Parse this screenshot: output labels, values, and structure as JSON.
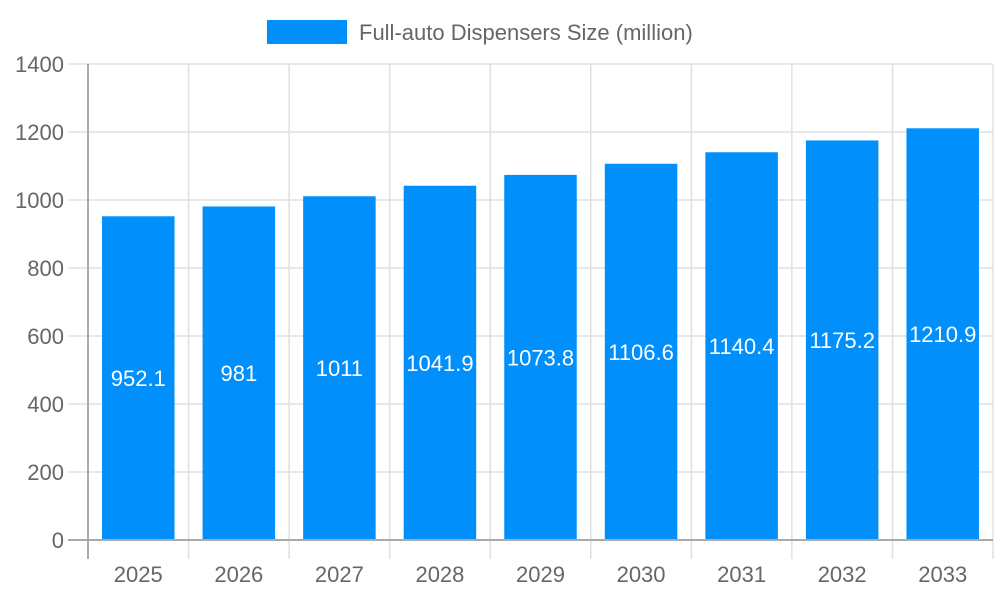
{
  "chart_data": {
    "type": "bar",
    "title": "",
    "xlabel": "",
    "ylabel": "",
    "categories": [
      "2025",
      "2026",
      "2027",
      "2028",
      "2029",
      "2030",
      "2031",
      "2032",
      "2033"
    ],
    "series": [
      {
        "name": "Full-auto Dispensers Size (million)",
        "values": [
          952.1,
          981,
          1011,
          1041.9,
          1073.8,
          1106.6,
          1140.4,
          1175.2,
          1210.9
        ],
        "color": "#008ffb"
      }
    ],
    "data_labels": [
      "952.1",
      "981",
      "1011",
      "1041.9",
      "1073.8",
      "1106.6",
      "1140.4",
      "1175.2",
      "1210.9"
    ],
    "ylim": [
      0,
      1400
    ],
    "yticks": [
      "0",
      "200",
      "400",
      "600",
      "800",
      "1000",
      "1200",
      "1400"
    ],
    "grid": true,
    "legend_position": "top"
  }
}
